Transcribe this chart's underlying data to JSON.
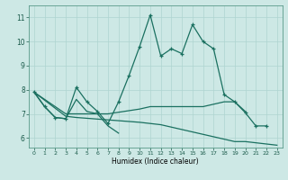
{
  "xlabel": "Humidex (Indice chaleur)",
  "xlim": [
    -0.5,
    23.5
  ],
  "ylim": [
    5.6,
    11.5
  ],
  "xticks": [
    0,
    1,
    2,
    3,
    4,
    5,
    6,
    7,
    8,
    9,
    10,
    11,
    12,
    13,
    14,
    15,
    16,
    17,
    18,
    19,
    20,
    21,
    22,
    23
  ],
  "yticks": [
    6,
    7,
    8,
    9,
    10,
    11
  ],
  "background_color": "#cde8e5",
  "grid_color": "#aed4d0",
  "line_color": "#1a7060",
  "line1_x": [
    0,
    1,
    2,
    3,
    4,
    5,
    6,
    7,
    8,
    9,
    10,
    11,
    12,
    13,
    14,
    15,
    16,
    17,
    18,
    19,
    20,
    21,
    22
  ],
  "line1_y": [
    7.9,
    7.3,
    6.85,
    6.8,
    8.1,
    7.5,
    7.1,
    6.6,
    7.5,
    8.6,
    9.8,
    11.1,
    9.4,
    9.7,
    9.5,
    10.7,
    10.0,
    9.7,
    7.8,
    7.5,
    7.05,
    6.5,
    6.5
  ],
  "line2_x": [
    0,
    1,
    2,
    3,
    4,
    5,
    6,
    7,
    8
  ],
  "line2_y": [
    7.9,
    7.3,
    6.85,
    6.8,
    7.6,
    7.1,
    7.0,
    6.5,
    6.2
  ],
  "line3_x": [
    0,
    3,
    4,
    7,
    10,
    11,
    12,
    13,
    14,
    15,
    16,
    17,
    18,
    19,
    20
  ],
  "line3_y": [
    7.9,
    7.0,
    7.0,
    7.0,
    7.2,
    7.3,
    7.3,
    7.3,
    7.3,
    7.3,
    7.3,
    7.4,
    7.5,
    7.5,
    7.1
  ],
  "line4_x": [
    0,
    3,
    4,
    7,
    10,
    11,
    12,
    13,
    14,
    15,
    16,
    17,
    18,
    19,
    20,
    23
  ],
  "line4_y": [
    7.9,
    6.9,
    6.85,
    6.75,
    6.65,
    6.6,
    6.55,
    6.45,
    6.35,
    6.25,
    6.15,
    6.05,
    5.95,
    5.85,
    5.85,
    5.7
  ]
}
